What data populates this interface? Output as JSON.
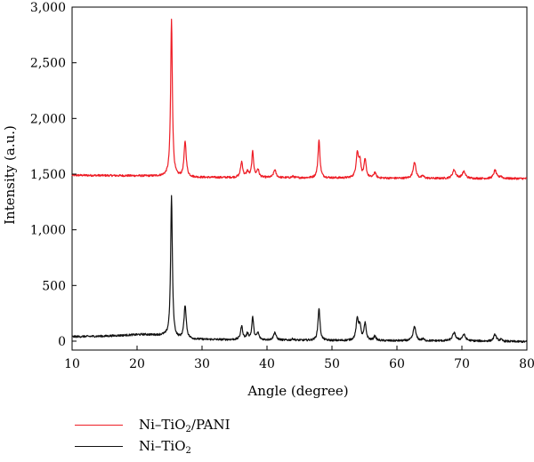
{
  "chart_data": {
    "type": "line",
    "title": "",
    "xlabel": "Angle (degree)",
    "ylabel": "Intensity (a.u.)",
    "xlim": [
      10,
      80
    ],
    "ylim": [
      -80,
      3000
    ],
    "xticks": [
      10,
      20,
      30,
      40,
      50,
      60,
      70,
      80
    ],
    "yticks": [
      0,
      500,
      1000,
      1500,
      2000,
      2500,
      3000
    ],
    "xtick_labels": [
      "10",
      "20",
      "30",
      "40",
      "50",
      "60",
      "70",
      "80"
    ],
    "ytick_labels": [
      "0",
      "500",
      "1,000",
      "1,500",
      "2,000",
      "2,500",
      "3,000"
    ],
    "grid": false,
    "legend_position": "bottom-left",
    "series": [
      {
        "name": "Ni–TiO2/PANI",
        "legend_parts": [
          "Ni–TiO",
          "2",
          "/PANI"
        ],
        "color": "#ee1c25",
        "baseline": [
          [
            10,
            1490
          ],
          [
            20,
            1485
          ],
          [
            24.5,
            1480
          ],
          [
            26,
            1470
          ],
          [
            30,
            1470
          ],
          [
            40,
            1468
          ],
          [
            50,
            1465
          ],
          [
            60,
            1462
          ],
          [
            70,
            1460
          ],
          [
            80,
            1460
          ]
        ],
        "peaks": [
          [
            25.3,
            1410,
            0.16
          ],
          [
            27.4,
            320,
            0.2
          ],
          [
            36.1,
            140,
            0.2
          ],
          [
            37.0,
            50,
            0.2
          ],
          [
            37.8,
            230,
            0.17
          ],
          [
            38.6,
            70,
            0.2
          ],
          [
            41.2,
            70,
            0.22
          ],
          [
            44.0,
            12,
            0.2
          ],
          [
            48.0,
            340,
            0.18
          ],
          [
            53.9,
            220,
            0.22
          ],
          [
            54.3,
            140,
            0.18
          ],
          [
            55.1,
            160,
            0.2
          ],
          [
            56.6,
            50,
            0.2
          ],
          [
            62.7,
            150,
            0.24
          ],
          [
            64.0,
            20,
            0.2
          ],
          [
            68.8,
            75,
            0.3
          ],
          [
            70.3,
            60,
            0.3
          ],
          [
            75.1,
            75,
            0.25
          ],
          [
            76.0,
            20,
            0.2
          ]
        ],
        "noise": 9,
        "values": "computed"
      },
      {
        "name": "Ni–TiO2",
        "legend_parts": [
          "Ni–TiO",
          "2",
          ""
        ],
        "color": "#111111",
        "baseline": [
          [
            10,
            40
          ],
          [
            15,
            45
          ],
          [
            19,
            55
          ],
          [
            21,
            60
          ],
          [
            24,
            50
          ],
          [
            26,
            20
          ],
          [
            30,
            15
          ],
          [
            40,
            10
          ],
          [
            50,
            5
          ],
          [
            60,
            3
          ],
          [
            70,
            2
          ],
          [
            80,
            -5
          ]
        ],
        "peaks": [
          [
            25.3,
            1270,
            0.16
          ],
          [
            27.4,
            300,
            0.2
          ],
          [
            36.1,
            120,
            0.2
          ],
          [
            37.0,
            50,
            0.2
          ],
          [
            37.8,
            200,
            0.17
          ],
          [
            38.6,
            60,
            0.2
          ],
          [
            41.2,
            70,
            0.22
          ],
          [
            44.0,
            12,
            0.2
          ],
          [
            48.0,
            290,
            0.18
          ],
          [
            53.9,
            190,
            0.22
          ],
          [
            54.3,
            120,
            0.18
          ],
          [
            55.1,
            150,
            0.2
          ],
          [
            56.6,
            40,
            0.2
          ],
          [
            62.7,
            130,
            0.24
          ],
          [
            64.0,
            15,
            0.2
          ],
          [
            68.8,
            70,
            0.3
          ],
          [
            70.3,
            55,
            0.3
          ],
          [
            75.1,
            60,
            0.25
          ],
          [
            76.0,
            15,
            0.2
          ]
        ],
        "noise": 9,
        "values": "computed"
      }
    ]
  }
}
